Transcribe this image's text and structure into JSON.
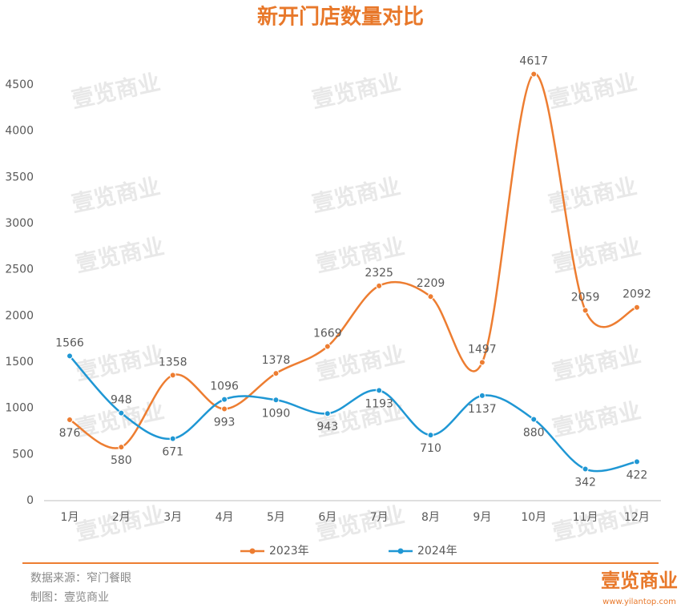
{
  "chart_data": {
    "type": "line",
    "title": "新开门店数量对比",
    "categories": [
      "1月",
      "2月",
      "3月",
      "4月",
      "5月",
      "6月",
      "7月",
      "8月",
      "9月",
      "10月",
      "11月",
      "12月"
    ],
    "series": [
      {
        "name": "2023年",
        "color": "#ed7d31",
        "values": [
          876,
          580,
          1358,
          993,
          1378,
          1669,
          2325,
          2209,
          1497,
          4617,
          2059,
          2092
        ]
      },
      {
        "name": "2024年",
        "color": "#1f97d4",
        "values": [
          1566,
          948,
          671,
          1096,
          1090,
          943,
          1193,
          710,
          1137,
          880,
          342,
          422
        ]
      }
    ],
    "ylim": [
      0,
      4500
    ],
    "yticks": [
      0,
      500,
      1000,
      1500,
      2000,
      2500,
      3000,
      3500,
      4000,
      4500
    ],
    "legend": "bottom",
    "watermark": "壹览商业",
    "source": "数据来源：窄门餐眼",
    "credit": "制图：壹览商业",
    "logo": "壹览商业",
    "website": "www.yilantop.com"
  }
}
